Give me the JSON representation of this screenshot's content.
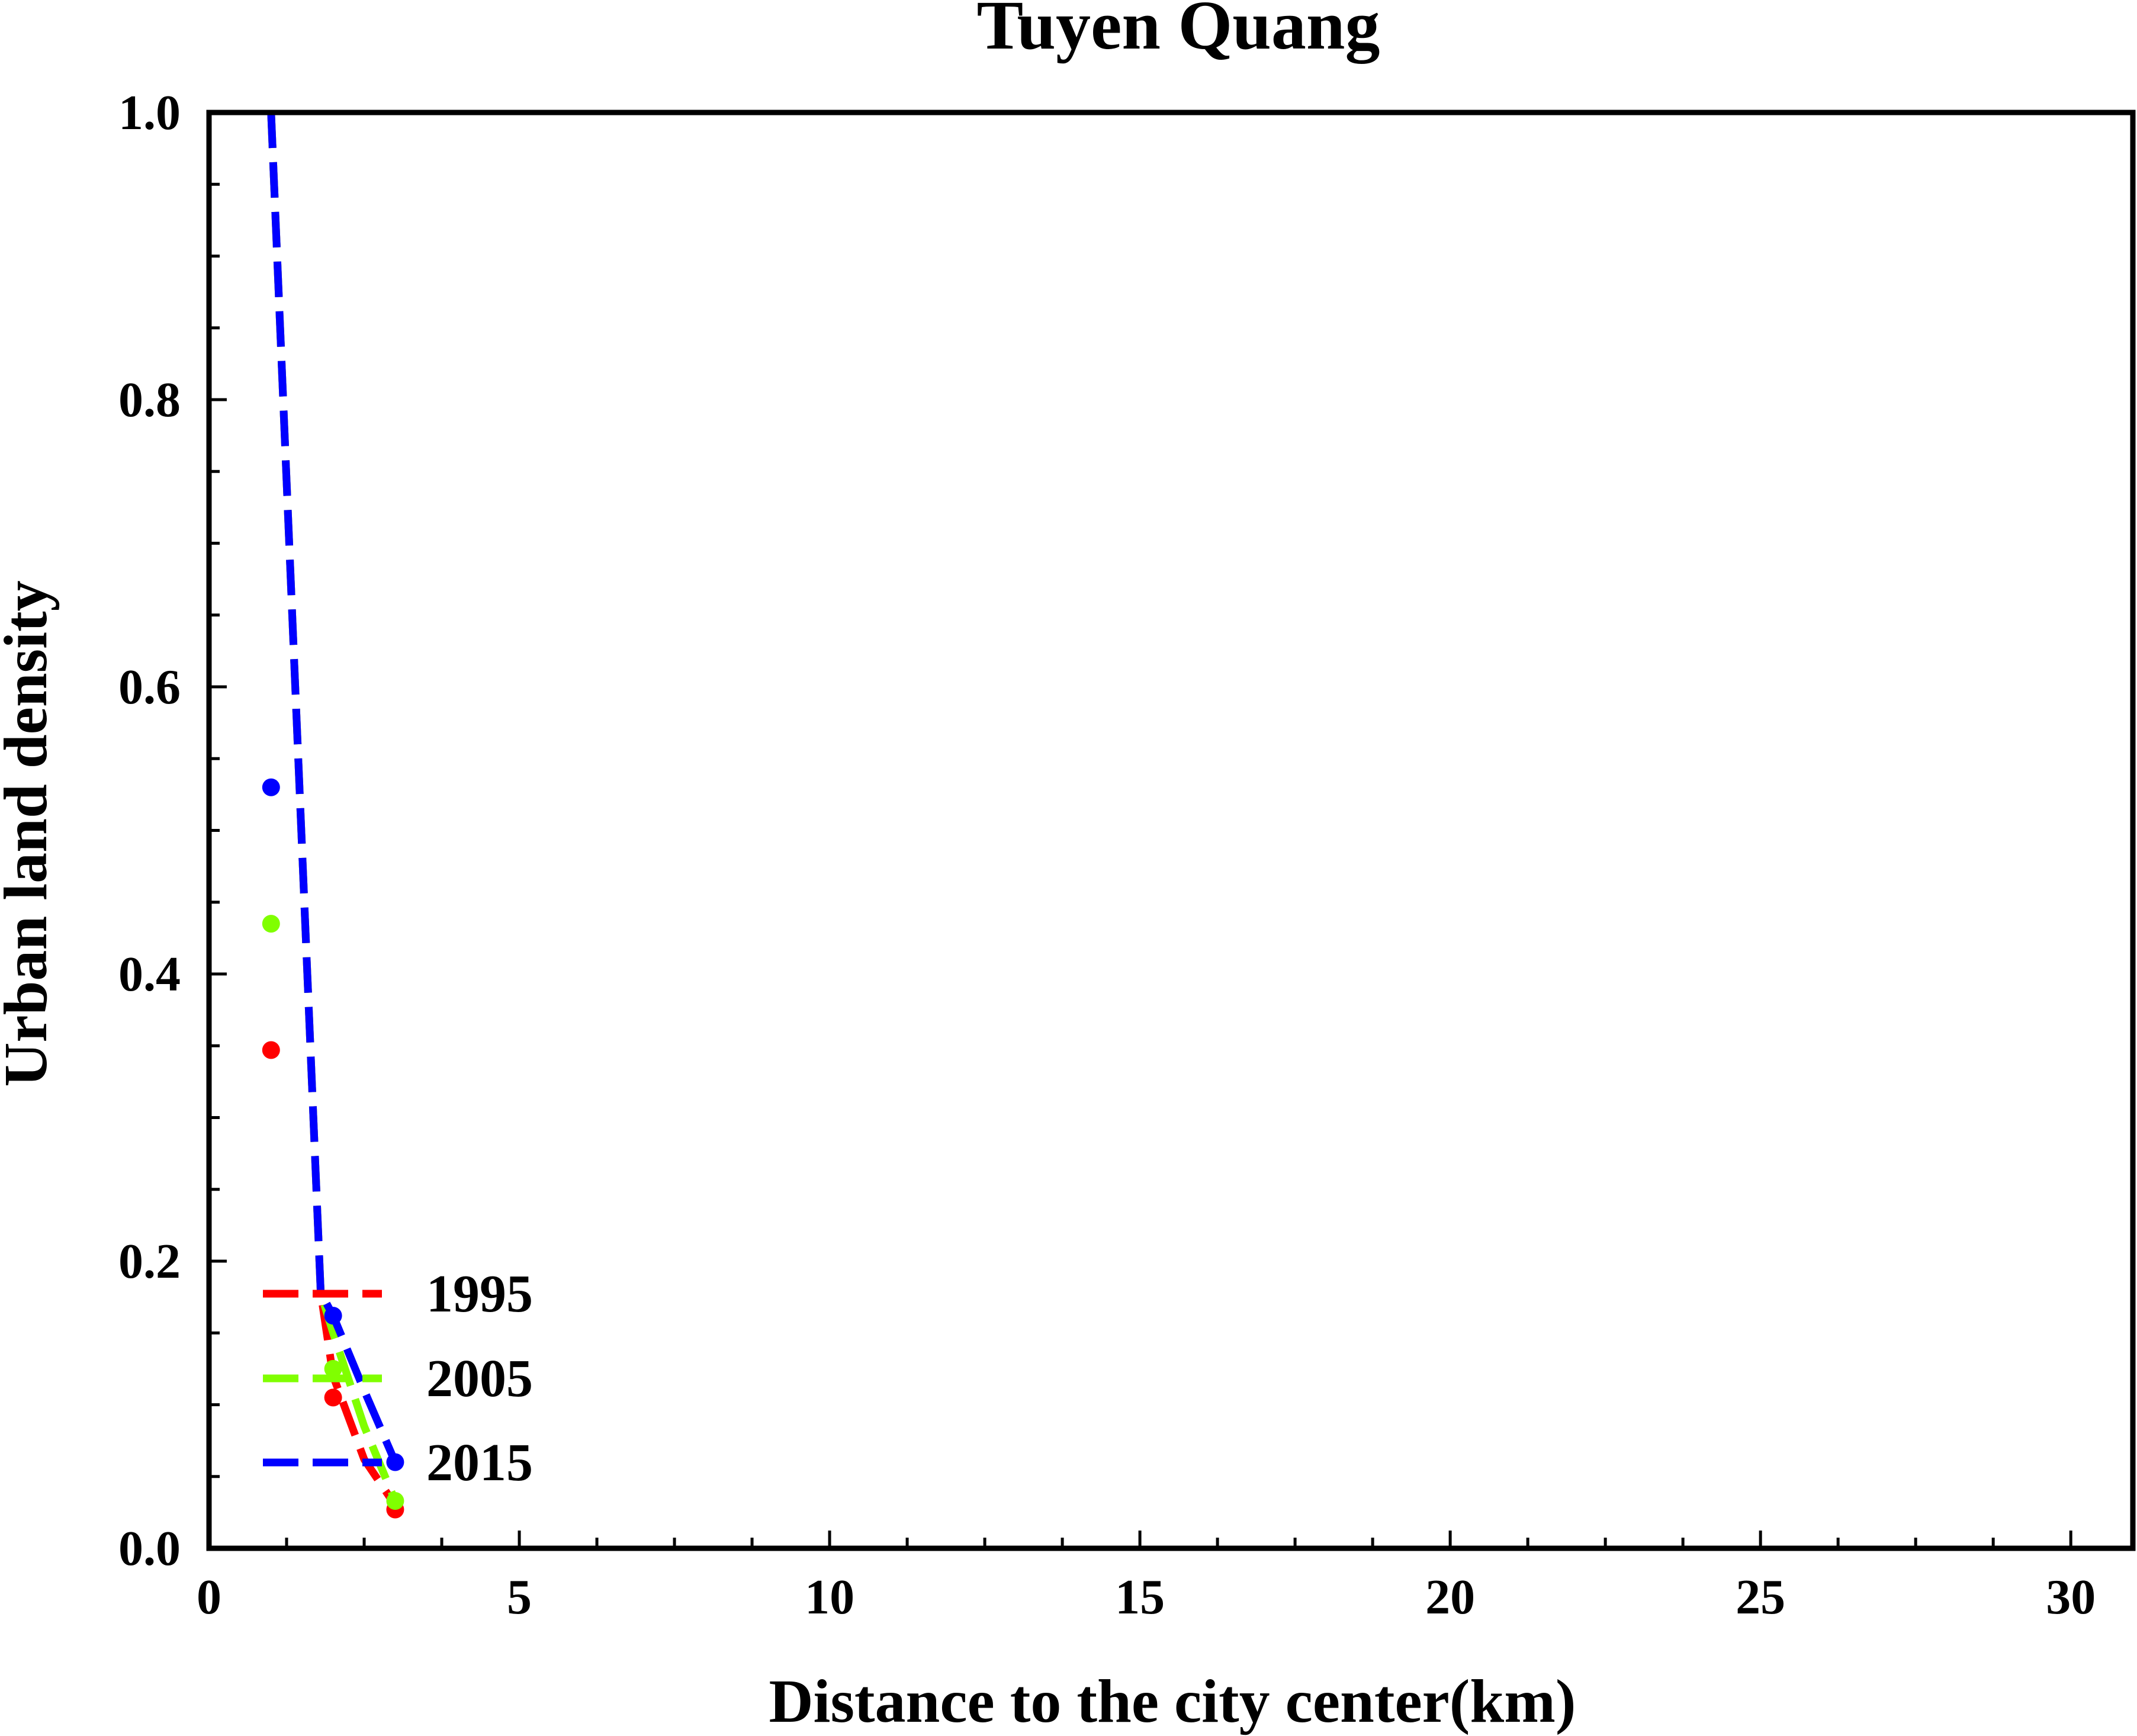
{
  "chart_data": {
    "type": "line",
    "title": "Tuyen Quang",
    "xlabel": "Distance to the city center(km)",
    "ylabel": "Urban land density",
    "xlim": [
      0,
      31
    ],
    "ylim": [
      0,
      1.0
    ],
    "x_ticks": [
      0,
      5,
      10,
      15,
      20,
      25,
      30
    ],
    "y_ticks": [
      0.0,
      0.2,
      0.4,
      0.6,
      0.8,
      1.0
    ],
    "x_tick_labels": [
      "0",
      "5",
      "10",
      "15",
      "20",
      "25",
      "30"
    ],
    "y_tick_labels": [
      "0.0",
      "0.2",
      "0.4",
      "0.6",
      "0.8",
      "1.0"
    ],
    "grid": false,
    "legend_position": "bottom-left",
    "series": [
      {
        "name": "1995",
        "color": "#ff0000",
        "points": {
          "x": [
            1,
            2,
            3
          ],
          "y": [
            0.347,
            0.105,
            0.027
          ]
        },
        "fit": {
          "x": [
            1.0,
            1.8,
            2.0,
            2.5,
            3.0
          ],
          "y": [
            1.0,
            0.178,
            0.12,
            0.062,
            0.03
          ]
        }
      },
      {
        "name": "2005",
        "color": "#80ff00",
        "points": {
          "x": [
            1,
            2,
            3
          ],
          "y": [
            0.435,
            0.125,
            0.033
          ]
        },
        "fit": {
          "x": [
            1.0,
            1.8,
            2.0,
            2.5,
            3.0
          ],
          "y": [
            1.0,
            0.178,
            0.15,
            0.085,
            0.033
          ]
        }
      },
      {
        "name": "2015",
        "color": "#0000ff",
        "points": {
          "x": [
            1,
            2,
            3
          ],
          "y": [
            0.53,
            0.162,
            0.06
          ]
        },
        "fit": {
          "x": [
            1.0,
            1.8,
            2.0,
            2.5,
            3.0
          ],
          "y": [
            1.0,
            0.178,
            0.162,
            0.11,
            0.06
          ]
        }
      }
    ]
  }
}
